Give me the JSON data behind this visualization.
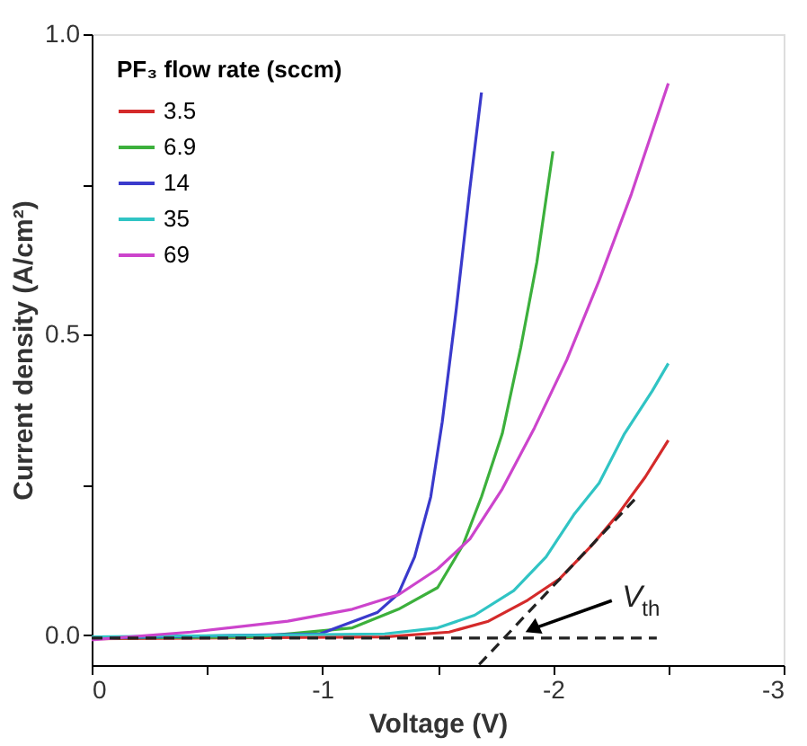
{
  "chart_data": {
    "type": "line",
    "xlabel": "Voltage (V)",
    "ylabel": "Current density (A/cm²)",
    "legend_title": "PF₃ flow rate (sccm)",
    "legend": "top left",
    "grid": false,
    "line_style": "solid",
    "marker": "none",
    "xlim": [
      0,
      -3
    ],
    "ylim": [
      -0.05,
      1.0
    ],
    "xticks": [
      0,
      {
        "value": -0.5,
        "label": null
      },
      -1,
      {
        "value": -1.5,
        "label": null
      },
      -2,
      {
        "value": -2.5,
        "label": null
      },
      -3
    ],
    "yticks": [
      {
        "value": 0,
        "label": "0.0"
      },
      {
        "value": 0.25,
        "label": null
      },
      0.5,
      {
        "value": 0.75,
        "label": null
      },
      {
        "value": 1,
        "label": "1.0"
      }
    ],
    "series": [
      {
        "name": "3.5",
        "color": "#d42a2a",
        "x": [
          0,
          -1.27,
          -1.55,
          -1.72,
          -1.89,
          -2.03,
          -2.17,
          -2.28,
          -2.4,
          -2.5
        ],
        "values": [
          -0.006,
          -0.003,
          0.005,
          0.023,
          0.058,
          0.094,
          0.15,
          0.2,
          0.263,
          0.324
        ]
      },
      {
        "name": "6.9",
        "color": "#3cb03c",
        "x": [
          0,
          -0.71,
          -1.13,
          -1.33,
          -1.5,
          -1.61,
          -1.69,
          -1.78,
          -1.86,
          -1.93,
          -2.0
        ],
        "values": [
          -0.005,
          -0.003,
          0.012,
          0.043,
          0.079,
          0.15,
          0.23,
          0.335,
          0.478,
          0.62,
          0.805
        ]
      },
      {
        "name": "14",
        "color": "#3a3acc",
        "x": [
          0,
          -0.99,
          -1.24,
          -1.33,
          -1.4,
          -1.47,
          -1.52,
          -1.58,
          -1.64,
          -1.69
        ],
        "values": [
          -0.005,
          0.002,
          0.038,
          0.069,
          0.13,
          0.23,
          0.355,
          0.54,
          0.744,
          0.903
        ]
      },
      {
        "name": "35",
        "color": "#30c4c4",
        "x": [
          0,
          -1.27,
          -1.5,
          -1.66,
          -1.83,
          -1.97,
          -2.09,
          -2.2,
          -2.31,
          -2.43,
          -2.5
        ],
        "values": [
          -0.003,
          0.002,
          0.012,
          0.033,
          0.074,
          0.13,
          0.2,
          0.253,
          0.335,
          0.406,
          0.452
        ]
      },
      {
        "name": "69",
        "color": "#cc44cc",
        "x": [
          0,
          -0.43,
          -0.85,
          -1.13,
          -1.33,
          -1.5,
          -1.64,
          -1.78,
          -1.92,
          -2.06,
          -2.2,
          -2.34,
          -2.5
        ],
        "values": [
          -0.008,
          0.005,
          0.023,
          0.043,
          0.067,
          0.11,
          0.16,
          0.243,
          0.345,
          0.458,
          0.59,
          0.734,
          0.918
        ]
      },
      {
        "color": "#222222",
        "line_style": "dashed",
        "x": [
          0,
          -2.45
        ],
        "values": [
          -0.005,
          -0.005
        ]
      },
      {
        "color": "#222222",
        "line_style": "dashed",
        "x": [
          -1.68,
          -2.37
        ],
        "values": [
          -0.049,
          0.232
        ]
      }
    ],
    "annotations": [
      {
        "text": "V$_{th}$",
        "x": -1.88,
        "y": 0.01
      }
    ]
  }
}
